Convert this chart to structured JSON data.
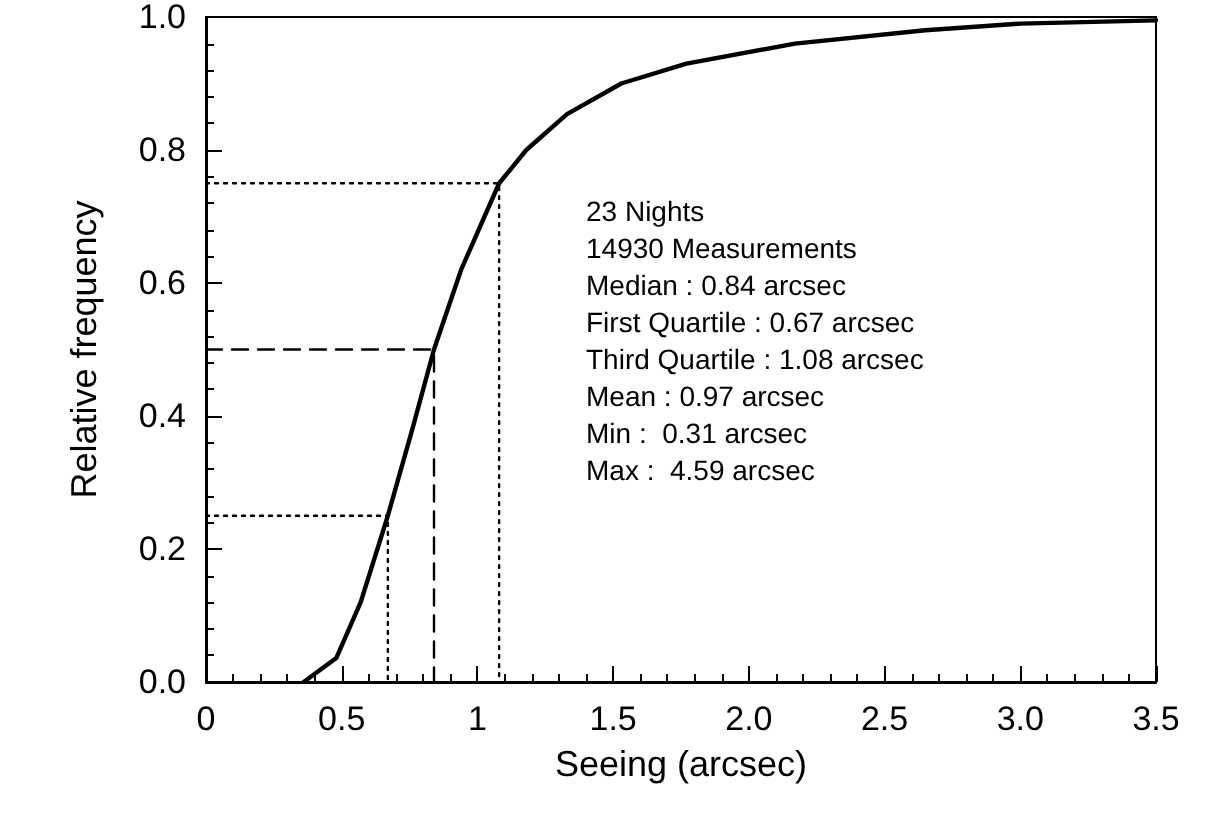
{
  "chart_data": {
    "type": "line",
    "xlabel": "Seeing (arcsec)",
    "ylabel": "Relative frequency",
    "xlim": [
      0,
      3.5
    ],
    "ylim": [
      0,
      1
    ],
    "xticks": [
      0,
      0.5,
      1,
      1.5,
      {
        "value": 2,
        "label": "2.0"
      },
      2.5,
      {
        "value": 3,
        "label": "3.0"
      },
      3.5
    ],
    "yticks": [
      {
        "value": 0,
        "label": "0.0"
      },
      0.2,
      0.4,
      0.6,
      0.8,
      {
        "value": 1,
        "label": "1.0"
      }
    ],
    "marker": "none",
    "series": [
      {
        "color": "#000000",
        "line_style": "solid",
        "x": [
          0.36,
          0.48,
          0.57,
          0.67,
          0.76,
          0.84,
          0.94,
          1.08,
          1.18,
          1.33,
          1.53,
          1.77,
          2.17,
          2.65,
          3.0,
          3.5
        ],
        "values": [
          0,
          0.036,
          0.12,
          0.25,
          0.38,
          0.5,
          0.62,
          0.75,
          0.8,
          0.854,
          0.9,
          0.93,
          0.96,
          0.98,
          0.99,
          0.995
        ]
      },
      {
        "color": "#000000",
        "line_style": "dotted",
        "x": [
          0,
          0.67,
          0.67
        ],
        "values": [
          0.25,
          0.25,
          0
        ]
      },
      {
        "color": "#000000",
        "line_style": "dashed",
        "x": [
          0,
          0.84,
          0.84
        ],
        "values": [
          0.5,
          0.5,
          0
        ]
      },
      {
        "color": "#000000",
        "line_style": "dotted",
        "x": [
          0,
          1.08,
          1.08
        ],
        "values": [
          0.75,
          0.75,
          0
        ]
      }
    ],
    "annotations": [
      "23 Nights",
      "14930 Measurements",
      "Median : 0.84 arcsec",
      "First Quartile : 0.67 arcsec",
      "Third Quartile : 1.08 arcsec",
      "Mean : 0.97 arcsec",
      "Min :  0.31 arcsec",
      "Max :  4.59 arcsec"
    ]
  }
}
